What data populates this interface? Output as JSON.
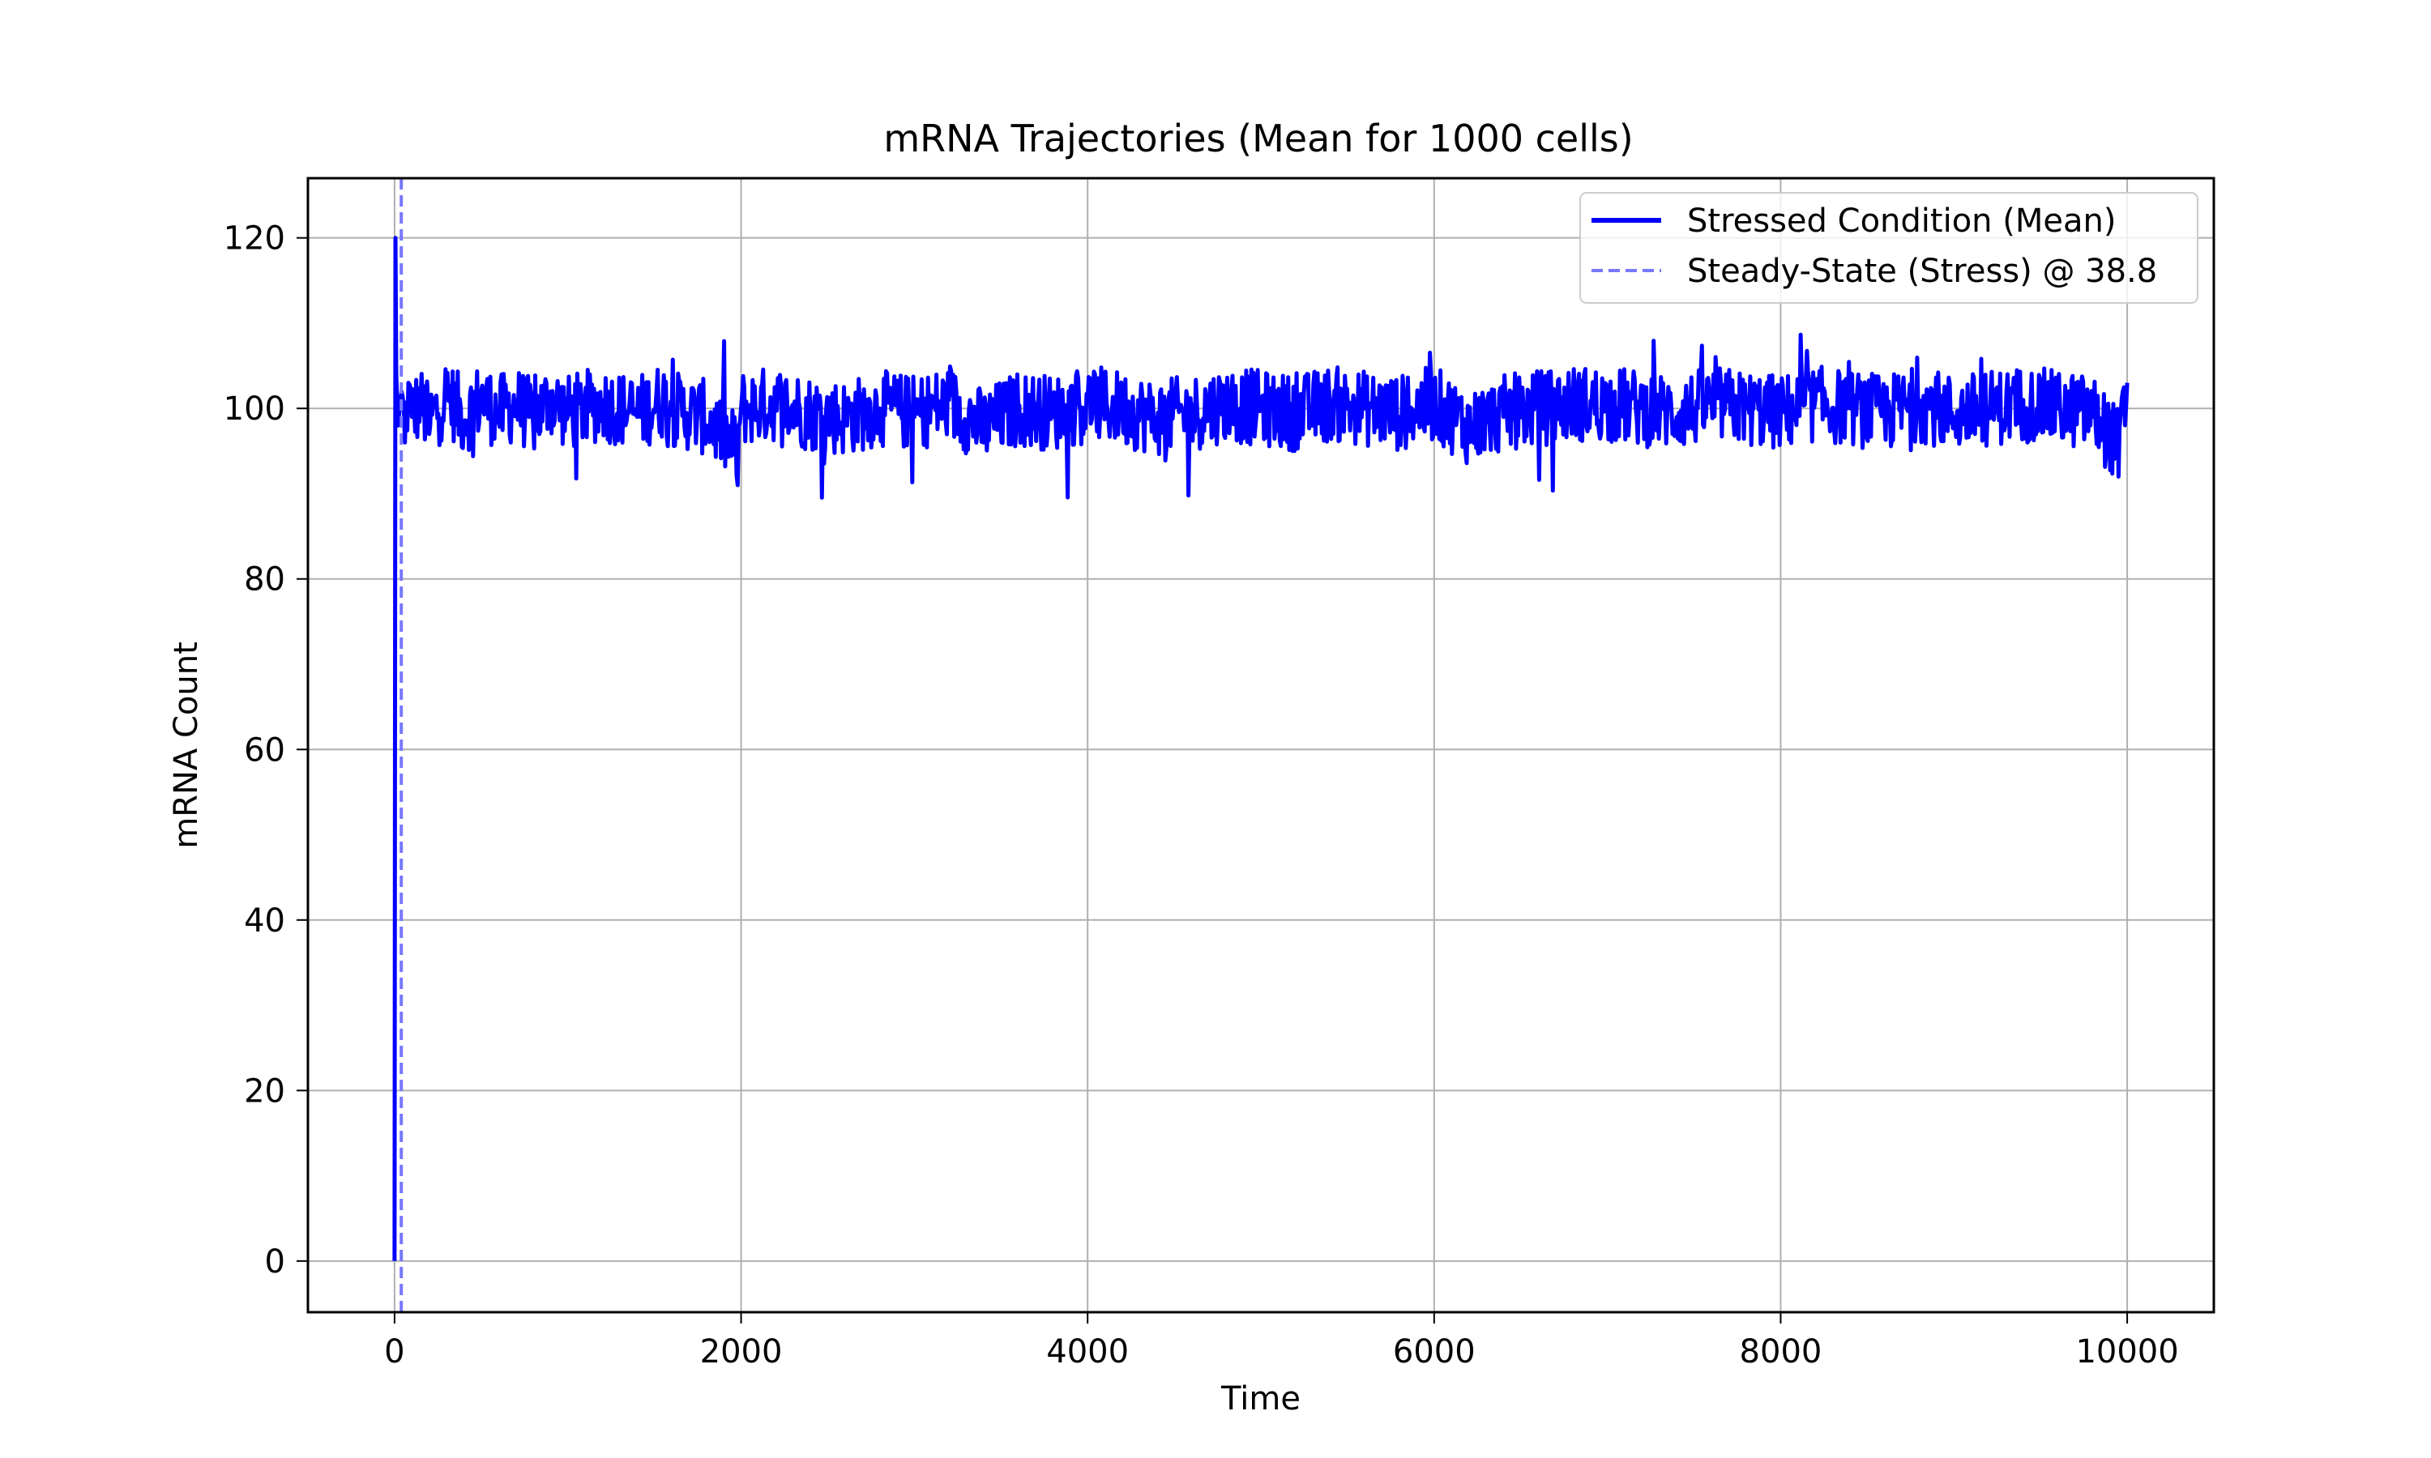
{
  "chart_data": {
    "type": "line",
    "title": "mRNA Trajectories (Mean for 1000 cells)",
    "xlabel": "Time",
    "ylabel": "mRNA Count",
    "xlim": [
      -500,
      10500
    ],
    "ylim": [
      -6,
      127
    ],
    "xticks": [
      0,
      2000,
      4000,
      6000,
      8000,
      10000
    ],
    "yticks": [
      0,
      20,
      40,
      60,
      80,
      100,
      120
    ],
    "grid": true,
    "legend_position": "upper right",
    "series": [
      {
        "name": "Stressed Condition (Mean)",
        "color": "#0000ff",
        "style": "solid",
        "x": [
          0,
          5,
          10,
          20,
          40,
          60,
          80,
          100,
          150,
          200,
          300,
          400,
          500,
          600,
          700,
          800,
          900,
          1000,
          1200,
          1400,
          1560,
          1600,
          1800,
          1980,
          2000,
          2200,
          2400,
          2600,
          2800,
          3000,
          3200,
          3400,
          3600,
          3800,
          4000,
          4200,
          4400,
          4600,
          4800,
          5000,
          5200,
          5400,
          5600,
          5800,
          6000,
          6200,
          6400,
          6600,
          6800,
          7000,
          7200,
          7400,
          7600,
          7800,
          8000,
          8200,
          8400,
          8600,
          8800,
          9000,
          9200,
          9400,
          9600,
          9800,
          9950,
          10000
        ],
        "y": [
          0,
          120,
          104,
          98,
          102,
          96,
          103,
          99,
          101,
          97,
          103,
          98,
          102,
          99,
          101,
          98,
          102,
          99,
          101,
          99,
          102,
          100,
          98,
          91,
          100,
          101,
          99,
          98,
          100,
          99,
          101,
          96,
          100,
          99,
          101,
          100,
          98,
          99,
          101,
          100,
          99,
          101,
          100,
          99,
          101,
          96,
          99,
          100,
          101,
          101,
          100,
          99,
          101,
          100,
          99,
          101,
          100,
          99,
          101,
          99,
          100,
          101,
          100,
          99,
          92,
          103
        ]
      },
      {
        "name": "Steady-State (Stress) @ 38.8",
        "color": "#7878ff",
        "style": "dashed",
        "orientation": "vertical",
        "x_value": 38.8
      }
    ]
  }
}
